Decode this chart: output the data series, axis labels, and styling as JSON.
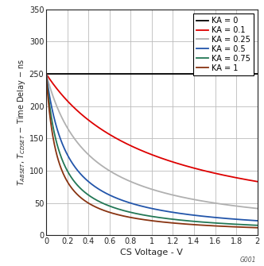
{
  "xlabel": "CS Voltage - V",
  "xlim": [
    0,
    2
  ],
  "ylim": [
    0,
    350
  ],
  "xticks": [
    0,
    0.2,
    0.4,
    0.6,
    0.8,
    1.0,
    1.2,
    1.4,
    1.6,
    1.8,
    2.0
  ],
  "yticks": [
    0,
    50,
    100,
    150,
    200,
    250,
    300,
    350
  ],
  "T0": 250,
  "Vc": 0.1,
  "series": [
    {
      "KA": 0,
      "color": "#000000",
      "label": "KA = 0",
      "lw": 1.3
    },
    {
      "KA": 0.1,
      "color": "#dd0000",
      "label": "KA = 0.1",
      "lw": 1.3
    },
    {
      "KA": 0.25,
      "color": "#b0b0b0",
      "label": "KA = 0.25",
      "lw": 1.3
    },
    {
      "KA": 0.5,
      "color": "#2255aa",
      "label": "KA = 0.5",
      "lw": 1.3
    },
    {
      "KA": 0.75,
      "color": "#227755",
      "label": "KA = 0.75",
      "lw": 1.3
    },
    {
      "KA": 1.0,
      "color": "#883311",
      "label": "KA = 1",
      "lw": 1.3
    }
  ],
  "watermark": "G001",
  "background_color": "#ffffff",
  "grid_color": "#bbbbbb"
}
